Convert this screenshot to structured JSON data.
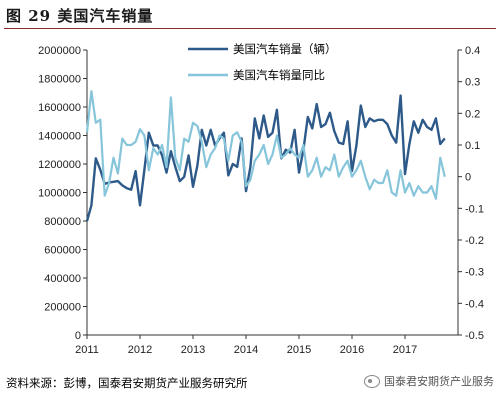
{
  "figure": {
    "title": "图 29 美国汽车销量",
    "source": "资料来源：彭博，国泰君安期货产业服务研究所",
    "watermark": "国泰君安期货产业服务"
  },
  "chart_data": {
    "type": "line",
    "title": "",
    "xlabel": "",
    "ylabel_left": "",
    "ylabel_right": "",
    "x_ticks": [
      "2011",
      "2012",
      "2013",
      "2014",
      "2015",
      "2016",
      "2017"
    ],
    "x_range": [
      2011.0,
      2018.0
    ],
    "y_left": {
      "min": 0,
      "max": 2000000,
      "ticks": [
        "0",
        "200000",
        "400000",
        "600000",
        "800000",
        "1000000",
        "1200000",
        "1400000",
        "1600000",
        "1800000",
        "2000000"
      ]
    },
    "y_right": {
      "min": -0.5,
      "max": 0.4,
      "ticks": [
        "-0.5",
        "-0.4",
        "-0.3",
        "-0.2",
        "-0.1",
        "0",
        "0.1",
        "0.2",
        "0.3",
        "0.4"
      ]
    },
    "grid": false,
    "legend_position": "top",
    "series": [
      {
        "name": "美国汽车销量（辆）",
        "axis": "left",
        "color": "#2e5a8a",
        "start": "2011-01",
        "values": [
          800000,
          910000,
          1240000,
          1160000,
          1060000,
          1070000,
          1075000,
          1080000,
          1050000,
          1030000,
          1020000,
          1150000,
          910000,
          1160000,
          1420000,
          1330000,
          1330000,
          1260000,
          1140000,
          1290000,
          1180000,
          1080000,
          1110000,
          1260000,
          1040000,
          1190000,
          1440000,
          1330000,
          1440000,
          1330000,
          1380000,
          1420000,
          1120000,
          1200000,
          1180000,
          1380000,
          1010000,
          1180000,
          1520000,
          1380000,
          1540000,
          1390000,
          1420000,
          1580000,
          1240000,
          1300000,
          1280000,
          1440000,
          1140000,
          1300000,
          1530000,
          1450000,
          1620000,
          1460000,
          1480000,
          1560000,
          1430000,
          1350000,
          1340000,
          1500000,
          1150000,
          1330000,
          1610000,
          1460000,
          1520000,
          1500000,
          1510000,
          1510000,
          1480000,
          1400000,
          1350000,
          1680000,
          1130000,
          1340000,
          1500000,
          1420000,
          1510000,
          1460000,
          1440000,
          1520000,
          1340000,
          1380000
        ]
      },
      {
        "name": "美国汽车销量同比",
        "axis": "right",
        "color": "#86c5da",
        "start": "2011-01",
        "values": [
          0.14,
          0.27,
          0.17,
          0.18,
          -0.06,
          -0.02,
          0.06,
          0.01,
          0.12,
          0.1,
          0.1,
          0.11,
          0.15,
          0.13,
          0.02,
          0.09,
          0.07,
          0.1,
          0.03,
          0.25,
          0.06,
          0.02,
          0.12,
          0.11,
          0.17,
          0.16,
          0.11,
          0.03,
          0.07,
          0.09,
          0.13,
          0.12,
          0.05,
          0.13,
          0.14,
          0.11,
          -0.03,
          -0.01,
          0.05,
          0.07,
          0.1,
          0.04,
          0.07,
          0.13,
          0.06,
          0.07,
          0.09,
          0.07,
          0.06,
          0.1,
          0.0,
          0.02,
          0.06,
          0.0,
          0.03,
          0.02,
          0.07,
          0.0,
          0.03,
          0.05,
          0.0,
          0.02,
          0.05,
          0.0,
          -0.04,
          -0.01,
          -0.02,
          -0.02,
          0.02,
          -0.05,
          -0.06,
          0.02,
          -0.05,
          -0.02,
          -0.06,
          -0.03,
          -0.05,
          -0.05,
          -0.03,
          -0.07,
          0.06,
          0.0
        ]
      }
    ]
  }
}
